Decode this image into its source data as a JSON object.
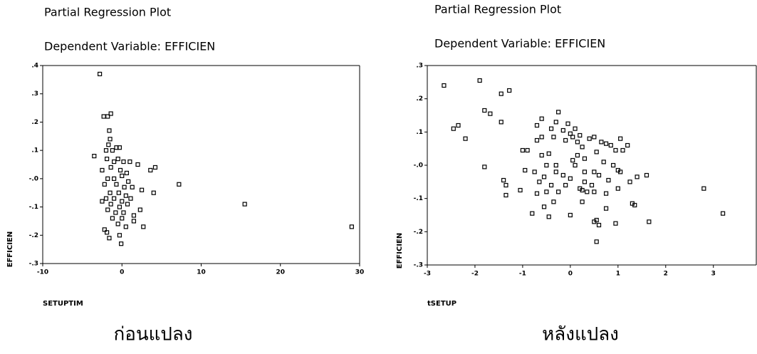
{
  "chart_data": [
    {
      "type": "scatter",
      "title": "Partial Regression Plot",
      "subtitle": "Dependent Variable: EFFICIEN",
      "xlabel": "SETUPTIM",
      "ylabel": "EFFICIEN",
      "caption": "ก่อนแปลง",
      "color": "#000000",
      "xlim": [
        -10,
        30
      ],
      "xticks": [
        -10,
        0,
        10,
        20,
        30
      ],
      "ylim": [
        -0.3,
        0.4
      ],
      "yticks": [
        {
          "value": 0.4,
          "label": ".4"
        },
        {
          "value": 0.3,
          "label": ".3"
        },
        {
          "value": 0.2,
          "label": ".2"
        },
        {
          "value": 0.1,
          "label": ".1"
        },
        {
          "value": 0,
          "label": "-.0"
        },
        {
          "value": -0.1,
          "label": "-.1"
        },
        {
          "value": -0.2,
          "label": "-.2"
        },
        {
          "value": -0.3,
          "label": "-.3"
        }
      ],
      "x": [
        -2.8,
        -3.5,
        -2.3,
        -1.8,
        -1.4,
        -1.6,
        -1.5,
        -1.7,
        -2.0,
        -1.2,
        -0.7,
        -0.3,
        -1.9,
        -1.0,
        -0.5,
        0.2,
        1.0,
        2.0,
        -2.5,
        -1.4,
        -0.2,
        0.6,
        3.6,
        4.2,
        -1.8,
        -1.0,
        0.0,
        0.8,
        -2.2,
        -0.7,
        0.3,
        1.3,
        2.5,
        -1.5,
        -0.4,
        0.5,
        -2.0,
        -1.0,
        0.0,
        1.1,
        -2.5,
        -1.4,
        -0.3,
        0.7,
        -1.8,
        -0.8,
        0.2,
        2.3,
        -1.2,
        0.0,
        1.5,
        -0.5,
        0.5,
        1.5,
        2.7,
        -2.2,
        -1.9,
        -0.3,
        -0.1,
        -1.6,
        7.2,
        15.5,
        29,
        4.0
      ],
      "values": [
        0.37,
        0.08,
        0.22,
        0.22,
        0.23,
        0.17,
        0.14,
        0.12,
        0.1,
        0.1,
        0.11,
        0.11,
        0.07,
        0.06,
        0.07,
        0.06,
        0.06,
        0.05,
        0.03,
        0.04,
        0.03,
        0.02,
        0.03,
        0.04,
        0.0,
        0.0,
        0.01,
        -0.01,
        -0.02,
        -0.02,
        -0.03,
        -0.03,
        -0.04,
        -0.05,
        -0.05,
        -0.06,
        -0.07,
        -0.07,
        -0.08,
        -0.07,
        -0.08,
        -0.09,
        -0.1,
        -0.09,
        -0.11,
        -0.12,
        -0.12,
        -0.11,
        -0.14,
        -0.14,
        -0.13,
        -0.16,
        -0.17,
        -0.15,
        -0.17,
        -0.18,
        -0.19,
        -0.2,
        -0.23,
        -0.21,
        -0.02,
        -0.09,
        -0.17,
        -0.05
      ]
    },
    {
      "type": "scatter",
      "title": "Partial Regression Plot",
      "subtitle": "Dependent Variable: EFFICIEN",
      "xlabel": "tSETUP",
      "ylabel": "EFFICIEN",
      "caption": "หลังแปลง",
      "color": "#000000",
      "xlim": [
        -3,
        3.9
      ],
      "xticks": [
        -3,
        -2,
        -1,
        0,
        1,
        2,
        3
      ],
      "ylim": [
        -0.3,
        0.3
      ],
      "yticks": [
        {
          "value": 0.3,
          "label": ".3"
        },
        {
          "value": 0.2,
          "label": ".2"
        },
        {
          "value": 0.1,
          "label": ".1"
        },
        {
          "value": 0,
          "label": "-.0"
        },
        {
          "value": -0.1,
          "label": "-.1"
        },
        {
          "value": -0.2,
          "label": "-.2"
        },
        {
          "value": -0.3,
          "label": "-.3"
        }
      ],
      "x": [
        -2.65,
        -2.45,
        -2.35,
        -2.2,
        -1.9,
        -1.8,
        -1.68,
        -1.45,
        -1.28,
        -1.45,
        -1.8,
        -1.0,
        -0.95,
        -1.05,
        -1.4,
        -1.35,
        -1.35,
        -0.7,
        -0.6,
        -0.55,
        -0.5,
        -0.45,
        -0.4,
        -0.3,
        -0.35,
        -0.25,
        -0.15,
        -0.1,
        -0.05,
        0.0,
        0.05,
        0.1,
        0.15,
        0.2,
        0.25,
        0.3,
        0.4,
        0.5,
        0.55,
        0.65,
        0.75,
        0.85,
        0.95,
        1.05,
        1.2,
        -0.7,
        -0.6,
        -0.7,
        -0.6,
        -0.75,
        -0.65,
        -0.5,
        -0.4,
        -0.3,
        -0.25,
        -0.15,
        -0.1,
        0.0,
        0.1,
        0.15,
        0.2,
        0.3,
        0.35,
        0.45,
        0.5,
        0.6,
        0.7,
        0.8,
        0.9,
        1.0,
        1.05,
        1.1,
        1.25,
        1.4,
        1.6,
        1.0,
        0.75,
        0.5,
        0.25,
        -0.45,
        -0.55,
        -0.8,
        -0.35,
        0.0,
        0.25,
        0.55,
        0.6,
        0.5,
        0.75,
        0.95,
        0.55,
        1.3,
        1.35,
        1.65,
        2.8,
        3.2,
        -0.9,
        -0.3,
        0.05,
        0.3
      ],
      "values": [
        0.24,
        0.11,
        0.12,
        0.08,
        0.255,
        0.165,
        0.155,
        0.215,
        0.225,
        0.13,
        -0.005,
        0.045,
        -0.015,
        -0.075,
        -0.045,
        -0.06,
        -0.09,
        -0.085,
        0.03,
        -0.035,
        0.0,
        0.035,
        0.11,
        0.13,
        0.085,
        0.16,
        0.105,
        0.075,
        0.125,
        0.095,
        0.085,
        0.11,
        0.07,
        0.09,
        0.055,
        0.02,
        0.08,
        0.085,
        0.04,
        0.07,
        0.065,
        0.06,
        0.045,
        0.08,
        0.06,
        0.12,
        0.14,
        0.075,
        0.085,
        -0.02,
        -0.05,
        -0.08,
        -0.06,
        -0.02,
        -0.08,
        -0.03,
        -0.06,
        -0.04,
        0.0,
        0.03,
        -0.07,
        -0.05,
        -0.08,
        -0.06,
        -0.02,
        -0.03,
        0.01,
        -0.045,
        0.0,
        -0.015,
        -0.02,
        0.045,
        -0.05,
        -0.035,
        -0.03,
        -0.07,
        -0.085,
        -0.08,
        -0.075,
        -0.155,
        -0.125,
        -0.145,
        -0.11,
        -0.15,
        -0.11,
        -0.165,
        -0.18,
        -0.17,
        -0.13,
        -0.175,
        -0.23,
        -0.115,
        -0.12,
        -0.17,
        -0.07,
        -0.145,
        0.045,
        0.0,
        0.015,
        -0.02
      ]
    }
  ]
}
